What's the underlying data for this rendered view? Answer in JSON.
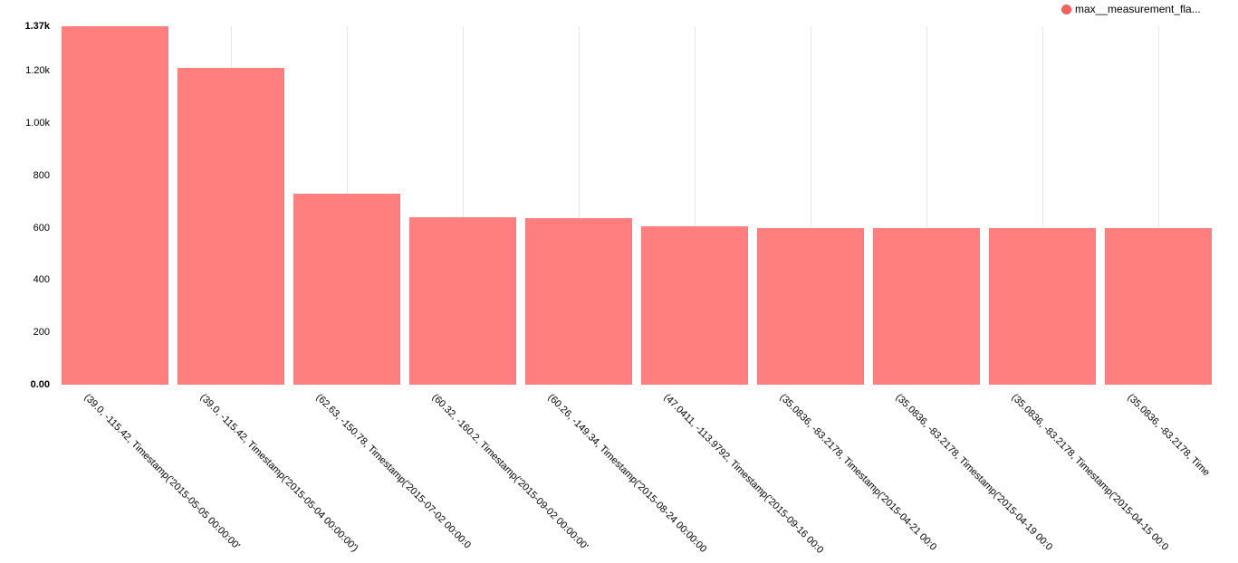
{
  "legend": {
    "label": "max__measurement_fla...",
    "dot_color": "#f4605c"
  },
  "chart_data": {
    "type": "bar",
    "title": "",
    "xlabel": "",
    "ylabel": "",
    "legend_position": "top-right",
    "grid": "vertical",
    "grid_color": "#e7e7e7",
    "bar_color": "#ff7f7f",
    "ylim": [
      0,
      1370
    ],
    "categories": [
      "(39.0, -115.42, Timestamp('2015-05-05 00:00:00'",
      "(39.0, -115.42, Timestamp('2015-05-04 00:00:00')",
      "(62.63, -150.78, Timestamp('2015-07-02 00:00:0",
      "(60.32, -160.2, Timestamp('2015-09-02 00:00:00'",
      "(60.26, -149.34, Timestamp('2015-08-24 00:00:00",
      "(47.0411, -113.9792, Timestamp('2015-09-16 00:0",
      "(35.0836, -83.2178, Timestamp('2015-04-21 00:0",
      "(35.0836, -83.2178, Timestamp('2015-04-19 00:0",
      "(35.0836, -83.2178, Timestamp('2015-04-15 00:0",
      "(35.0836, -83.2178, Time"
    ],
    "series": [
      {
        "name": "max__measurement_fla...",
        "values": [
          1370,
          1210,
          730,
          640,
          635,
          605,
          600,
          600,
          600,
          600
        ]
      }
    ],
    "yticks": [
      {
        "label": "0.00",
        "value": 0,
        "bold": true
      },
      {
        "label": "200",
        "value": 200,
        "bold": false
      },
      {
        "label": "400",
        "value": 400,
        "bold": false
      },
      {
        "label": "600",
        "value": 600,
        "bold": false
      },
      {
        "label": "800",
        "value": 800,
        "bold": false
      },
      {
        "label": "1.00k",
        "value": 1000,
        "bold": false
      },
      {
        "label": "1.20k",
        "value": 1200,
        "bold": false
      },
      {
        "label": "1.37k",
        "value": 1370,
        "bold": true
      }
    ]
  }
}
